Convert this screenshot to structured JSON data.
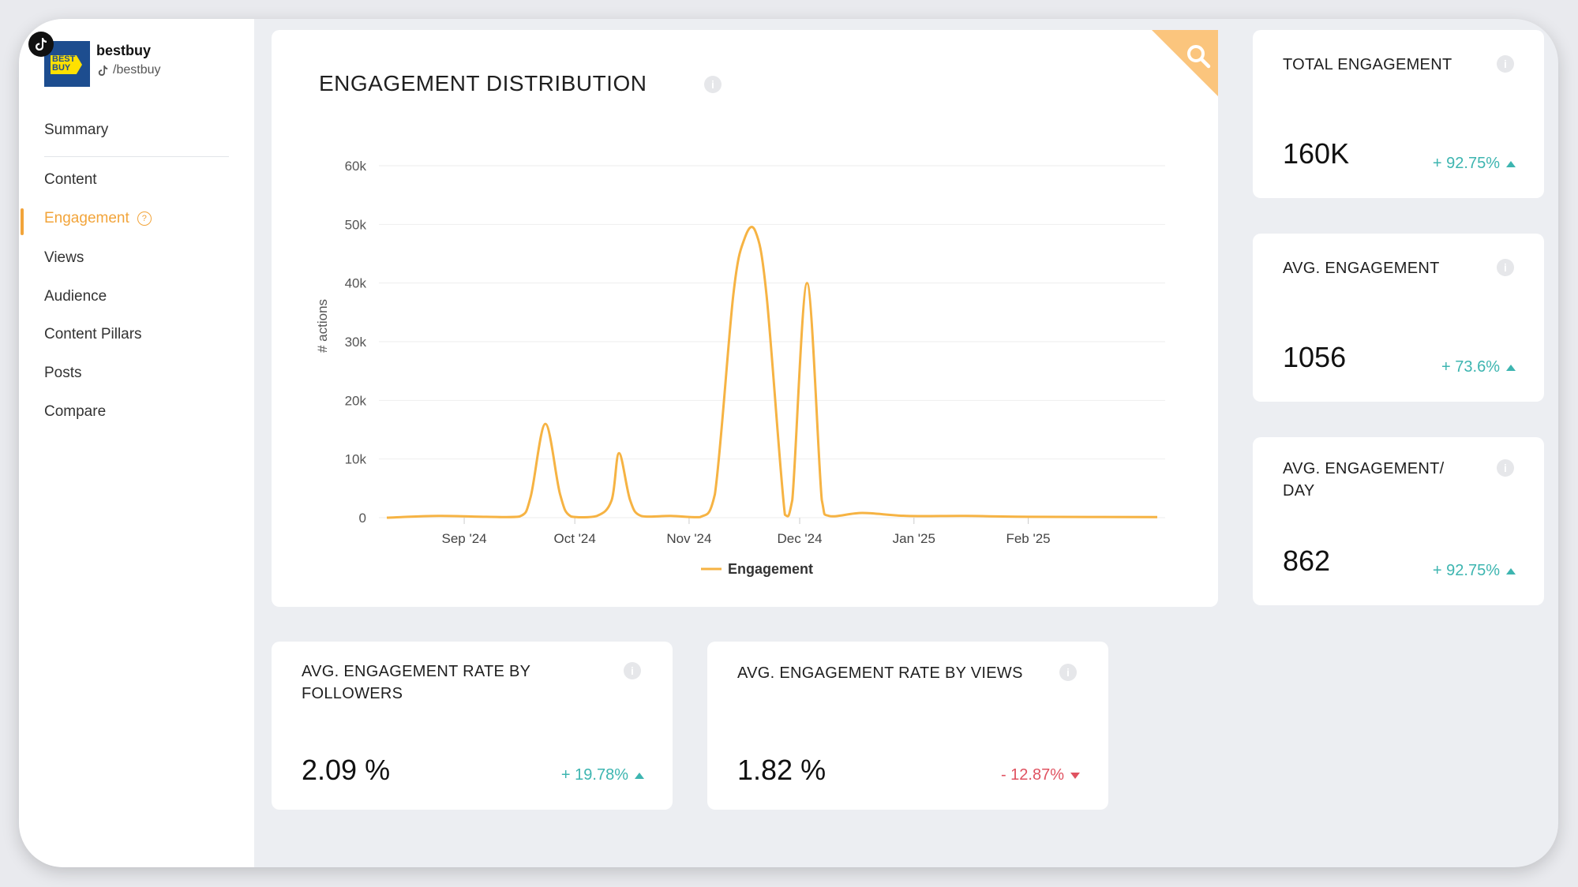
{
  "account": {
    "name": "bestbuy",
    "handle": "/bestbuy",
    "logo_text_1": "BEST",
    "logo_text_2": "BUY"
  },
  "nav": {
    "items": [
      {
        "label": "Summary",
        "active": false
      },
      {
        "label": "Content",
        "active": false
      },
      {
        "label": "Engagement",
        "active": true
      },
      {
        "label": "Views",
        "active": false
      },
      {
        "label": "Audience",
        "active": false
      },
      {
        "label": "Content Pillars",
        "active": false
      },
      {
        "label": "Posts",
        "active": false
      },
      {
        "label": "Compare",
        "active": false
      }
    ],
    "help_mark": "?"
  },
  "chart": {
    "title": "ENGAGEMENT DISTRIBUTION",
    "info": "i"
  },
  "chart_data": {
    "type": "line",
    "ylabel": "# actions",
    "xlabel": "",
    "ylim": [
      0,
      60000
    ],
    "y_ticks": [
      {
        "value": 0,
        "label": "0"
      },
      {
        "value": 10000,
        "label": "10k"
      },
      {
        "value": 20000,
        "label": "20k"
      },
      {
        "value": 30000,
        "label": "30k"
      },
      {
        "value": 40000,
        "label": "40k"
      },
      {
        "value": 50000,
        "label": "50k"
      },
      {
        "value": 60000,
        "label": "60k"
      }
    ],
    "x_ticks": [
      "Sep '24",
      "Oct '24",
      "Nov '24",
      "Dec '24",
      "Jan '25",
      "Feb '25"
    ],
    "x_range": [
      "2024-08-11",
      "2025-03-08"
    ],
    "grid": true,
    "legend_position": "bottom",
    "series": [
      {
        "name": "Engagement",
        "color": "#f6b343",
        "points": [
          [
            "2024-08-11",
            0
          ],
          [
            "2024-08-25",
            300
          ],
          [
            "2024-09-07",
            150
          ],
          [
            "2024-09-16",
            200
          ],
          [
            "2024-09-19",
            3500
          ],
          [
            "2024-09-23",
            16000
          ],
          [
            "2024-09-27",
            4000
          ],
          [
            "2024-09-30",
            200
          ],
          [
            "2024-10-07",
            300
          ],
          [
            "2024-10-11",
            3000
          ],
          [
            "2024-10-13",
            11000
          ],
          [
            "2024-10-16",
            3000
          ],
          [
            "2024-10-19",
            300
          ],
          [
            "2024-10-27",
            300
          ],
          [
            "2024-11-04",
            100
          ],
          [
            "2024-11-08",
            4000
          ],
          [
            "2024-11-13",
            38000
          ],
          [
            "2024-11-16",
            47500
          ],
          [
            "2024-11-19",
            48800
          ],
          [
            "2024-11-22",
            38000
          ],
          [
            "2024-11-27",
            500
          ],
          [
            "2024-11-29",
            3000
          ],
          [
            "2024-12-03",
            40000
          ],
          [
            "2024-12-07",
            3000
          ],
          [
            "2024-12-09",
            300
          ],
          [
            "2024-12-18",
            800
          ],
          [
            "2024-12-30",
            300
          ],
          [
            "2025-01-15",
            300
          ],
          [
            "2025-02-01",
            150
          ],
          [
            "2025-03-08",
            100
          ]
        ]
      }
    ]
  },
  "metrics": {
    "total": {
      "title": "TOTAL ENGAGEMENT",
      "value": "160K",
      "change": "+ 92.75%",
      "direction": "up"
    },
    "avg": {
      "title": "AVG. ENGAGEMENT",
      "value": "1056",
      "change": "+ 73.6%",
      "direction": "up"
    },
    "per_day": {
      "title": "AVG. ENGAGEMENT/ DAY",
      "value": "862",
      "change": "+ 92.75%",
      "direction": "up"
    },
    "rate_followers": {
      "title": "AVG. ENGAGEMENT RATE BY FOLLOWERS",
      "value": "2.09 %",
      "change": "+ 19.78%",
      "direction": "up"
    },
    "rate_views": {
      "title": "AVG. ENGAGEMENT RATE BY VIEWS",
      "value": "1.82 %",
      "change": "- 12.87%",
      "direction": "down"
    }
  },
  "info_mark": "i",
  "colors": {
    "accent": "#f2a43a",
    "positive": "#3db5b0",
    "negative": "#e05260",
    "line": "#f6b343"
  }
}
